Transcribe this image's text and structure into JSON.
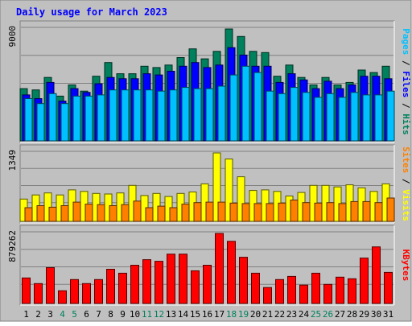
{
  "chart_data": {
    "type": "bar",
    "title": "Daily usage for March 2023",
    "categories": [
      "1",
      "2",
      "3",
      "4",
      "5",
      "6",
      "7",
      "8",
      "9",
      "10",
      "11",
      "12",
      "13",
      "14",
      "15",
      "16",
      "17",
      "18",
      "19",
      "20",
      "21",
      "22",
      "23",
      "24",
      "25",
      "26",
      "27",
      "28",
      "29",
      "30",
      "31"
    ],
    "weekend_days": [
      "4",
      "5",
      "11",
      "12",
      "18",
      "19",
      "25",
      "26"
    ],
    "panels": [
      {
        "id": "pages_files_hits",
        "ymax_label": "9000",
        "ylim": [
          0,
          9000
        ],
        "grid": true,
        "side_labels": [
          "Pages",
          "Files",
          "Hits"
        ],
        "series": [
          {
            "name": "Hits",
            "color": "#00805c",
            "values": [
              4200,
              4100,
              5100,
              3600,
              4500,
              4000,
              5200,
              6300,
              5400,
              5400,
              6000,
              5900,
              6100,
              6700,
              7400,
              6600,
              7200,
              9000,
              8400,
              7200,
              7100,
              5200,
              6100,
              5100,
              4500,
              5100,
              4500,
              4700,
              5700,
              5500,
              6000
            ]
          },
          {
            "name": "Files",
            "color": "#0000ff",
            "values": [
              3700,
              3400,
              4700,
              3200,
              4200,
              3900,
              4600,
              5100,
              5000,
              5000,
              5400,
              5300,
              5600,
              6000,
              6300,
              5900,
              6100,
              7500,
              6900,
              6000,
              6000,
              4700,
              5400,
              4900,
              4200,
              4800,
              4200,
              4500,
              5200,
              5200,
              5000
            ]
          },
          {
            "name": "Pages",
            "color": "#00c0ff",
            "values": [
              3400,
              3000,
              3800,
              3000,
              3600,
              3600,
              3700,
              4100,
              4100,
              4100,
              4100,
              4000,
              4100,
              4300,
              4200,
              4200,
              4400,
              5300,
              6000,
              5500,
              4000,
              3800,
              4300,
              3900,
              3500,
              3800,
              3500,
              3900,
              3700,
              3700,
              4000
            ]
          }
        ]
      },
      {
        "id": "visits_sites",
        "ymax_label": "1349",
        "ylim": [
          0,
          1349
        ],
        "grid": true,
        "side_labels": [
          "Sites",
          "Visits"
        ],
        "series": [
          {
            "name": "Visits",
            "color": "#ffff00",
            "values": [
              440,
              520,
              560,
              520,
              620,
              590,
              550,
              540,
              560,
              710,
              510,
              550,
              490,
              550,
              580,
              740,
              1349,
              1230,
              880,
              610,
              620,
              590,
              500,
              570,
              710,
              710,
              680,
              720,
              660,
              590,
              740
            ]
          },
          {
            "name": "Sites",
            "color": "#ff8000",
            "values": [
              270,
              310,
              280,
              310,
              380,
              340,
              330,
              310,
              330,
              400,
              270,
              300,
              270,
              340,
              370,
              380,
              380,
              360,
              350,
              350,
              350,
              360,
              420,
              370,
              360,
              370,
              350,
              390,
              390,
              370,
              460
            ]
          }
        ]
      },
      {
        "id": "kbytes",
        "ymax_label": "879262",
        "ylim": [
          0,
          879262
        ],
        "grid": true,
        "side_labels": [
          "KBytes"
        ],
        "series": [
          {
            "name": "KBytes",
            "color": "#ff0000",
            "values": [
              320000,
              250000,
              450000,
              160000,
              300000,
              250000,
              300000,
              430000,
              380000,
              480000,
              550000,
              530000,
              620000,
              620000,
              410000,
              480000,
              879262,
              780000,
              580000,
              380000,
              200000,
              300000,
              340000,
              230000,
              380000,
              240000,
              330000,
              310000,
              570000,
              710000,
              390000
            ]
          }
        ]
      }
    ]
  }
}
